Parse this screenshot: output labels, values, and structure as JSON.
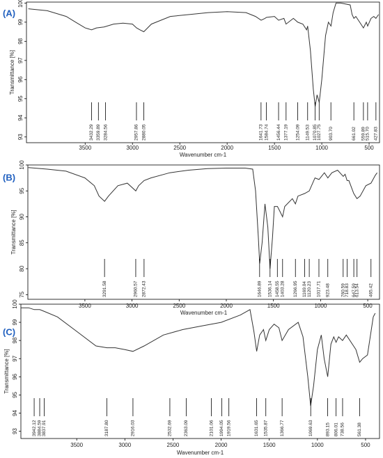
{
  "chart_data": [
    {
      "type": "line",
      "title": "(A)",
      "title_color": "#1f5fbf",
      "color": "#333333",
      "x_label": "Wavenumber cm-1",
      "y_label": "Transmittance [%]",
      "xlim": [
        4120,
        390
      ],
      "ylim": [
        92.7,
        100.05
      ],
      "xticks": [
        3500,
        3000,
        2500,
        2000,
        1500,
        1000,
        500
      ],
      "yticks": [
        93,
        94,
        95,
        96,
        97,
        98,
        99,
        100
      ],
      "x": [
        4100,
        3900,
        3700,
        3600,
        3500,
        3432,
        3380,
        3300,
        3200,
        3100,
        3000,
        2957,
        2920,
        2880,
        2800,
        2600,
        2400,
        2200,
        2000,
        1800,
        1700,
        1641,
        1600,
        1584,
        1500,
        1456,
        1400,
        1377,
        1300,
        1254,
        1200,
        1160,
        1149,
        1120,
        1090,
        1070,
        1050,
        1027,
        1000,
        960,
        930,
        903,
        880,
        850,
        800,
        700,
        680,
        661,
        640,
        600,
        560,
        530,
        515,
        480,
        450,
        428,
        400
      ],
      "values": [
        99.7,
        99.6,
        99.3,
        99.0,
        98.7,
        98.6,
        98.7,
        98.75,
        98.9,
        98.95,
        98.9,
        98.7,
        98.6,
        98.5,
        98.9,
        99.3,
        99.4,
        99.5,
        99.55,
        99.5,
        99.3,
        99.1,
        99.2,
        99.25,
        99.3,
        99.1,
        99.2,
        98.9,
        99.2,
        99.0,
        98.9,
        98.6,
        98.8,
        97.5,
        95.5,
        94.6,
        95.2,
        94.8,
        96,
        98.3,
        99,
        98.8,
        99.5,
        100,
        100,
        99.9,
        99.4,
        99.2,
        99.3,
        99.0,
        98.7,
        99.0,
        98.8,
        99.2,
        99.3,
        99.2,
        99.4
      ],
      "peaks": [
        3432.29,
        3359.89,
        3284.56,
        2957.86,
        2880.05,
        1641.73,
        1584.74,
        1456.44,
        1377.19,
        1254.09,
        1149.53,
        1070.85,
        1027.75,
        {
          "value": 903.7,
          "label": "903.70"
        },
        661.02,
        559.89,
        {
          "value": 515.7,
          "label": "515.70"
        },
        427.83
      ]
    },
    {
      "type": "line",
      "title": "(B)",
      "title_color": "#1f5fbf",
      "color": "#333333",
      "x_label": "Wavenumber cm-1",
      "y_label": "Transmittance [%]",
      "xlim": [
        4105,
        375
      ],
      "ylim": [
        74.1,
        100
      ],
      "xticks": [
        3500,
        3000,
        2500,
        2000,
        1500,
        1000,
        500
      ],
      "yticks": [
        75,
        80,
        85,
        90,
        95,
        100
      ],
      "x": [
        4100,
        3900,
        3700,
        3500,
        3400,
        3350,
        3291,
        3250,
        3150,
        3050,
        2960,
        2930,
        2872,
        2800,
        2600,
        2400,
        2200,
        2000,
        1800,
        1720,
        1690,
        1660,
        1646,
        1620,
        1590,
        1560,
        1536,
        1510,
        1490,
        1458,
        1430,
        1403,
        1380,
        1300,
        1267,
        1240,
        1169,
        1120,
        1060,
        1017,
        960,
        923,
        880,
        820,
        760,
        740,
        719,
        700,
        648,
        614,
        580,
        520,
        465,
        420,
        400
      ],
      "values": [
        99.5,
        99.2,
        98.8,
        97.5,
        96,
        94,
        93,
        94,
        96,
        96.5,
        95,
        96,
        97,
        97.5,
        98.5,
        99,
        99.3,
        99.4,
        99.4,
        99.2,
        95,
        86,
        81,
        85,
        92.5,
        88,
        80,
        86,
        92,
        92,
        91,
        90,
        92,
        93.5,
        92.5,
        94,
        94.5,
        95,
        97.5,
        97.2,
        98.5,
        97.5,
        98.5,
        99,
        97.8,
        98.2,
        97,
        97,
        94.5,
        93.5,
        94,
        96,
        96.5,
        98,
        98.5
      ],
      "peaks": [
        3291.58,
        2960.57,
        2872.43,
        1646.89,
        1536.14,
        1458.55,
        1403.28,
        1266.95,
        1169.04,
        1120.23,
        1017.71,
        923.48,
        760.59,
        718.83,
        647.59,
        613.54,
        465.42
      ]
    },
    {
      "type": "line",
      "title": "(C)",
      "title_color": "#1f5fbf",
      "color": "#333333",
      "x_label": "Wavenumber cm-1",
      "y_label": "Transmittance [%]",
      "xlim": [
        4080,
        355
      ],
      "ylim": [
        92.6,
        100
      ],
      "xticks": [
        3500,
        3000,
        2500,
        2000,
        1500,
        1000,
        500
      ],
      "yticks": [
        93,
        94,
        95,
        96,
        97,
        98,
        99,
        100
      ],
      "x": [
        4080,
        4000,
        3942,
        3884,
        3837,
        3700,
        3500,
        3300,
        3187,
        3100,
        3000,
        2916,
        2800,
        2600,
        2400,
        2200,
        2000,
        1800,
        1700,
        1660,
        1631,
        1600,
        1560,
        1536,
        1500,
        1450,
        1400,
        1367,
        1300,
        1200,
        1150,
        1100,
        1070,
        1040,
        1000,
        960,
        930,
        893,
        860,
        830,
        806,
        780,
        739,
        700,
        600,
        561,
        530,
        480,
        420,
        400
      ],
      "values": [
        99.8,
        99.8,
        99.7,
        99.7,
        99.6,
        99.3,
        98.5,
        97.7,
        97.6,
        97.6,
        97.5,
        97.4,
        97.7,
        98.3,
        98.6,
        98.8,
        99.0,
        99.4,
        99.7,
        98.5,
        97.4,
        98.3,
        98.6,
        98.0,
        98.6,
        98.9,
        98.7,
        98.0,
        98.6,
        99.0,
        98.2,
        96.0,
        94.4,
        95.5,
        97.5,
        98.3,
        97.0,
        96.0,
        97.8,
        98.2,
        97.9,
        98.2,
        98.0,
        98.3,
        97.5,
        96.8,
        97,
        97.2,
        99.3,
        99.5
      ],
      "peaks": [
        3942.12,
        3884.59,
        3837.91,
        {
          "value": 3187.8,
          "label": "3187.80"
        },
        2916.03,
        2532.69,
        2363.09,
        2101.06,
        1994.05,
        1919.56,
        1631.65,
        1535.87,
        1366.77,
        1069.63,
        893.15,
        806.01,
        738.56,
        561.38
      ]
    }
  ]
}
